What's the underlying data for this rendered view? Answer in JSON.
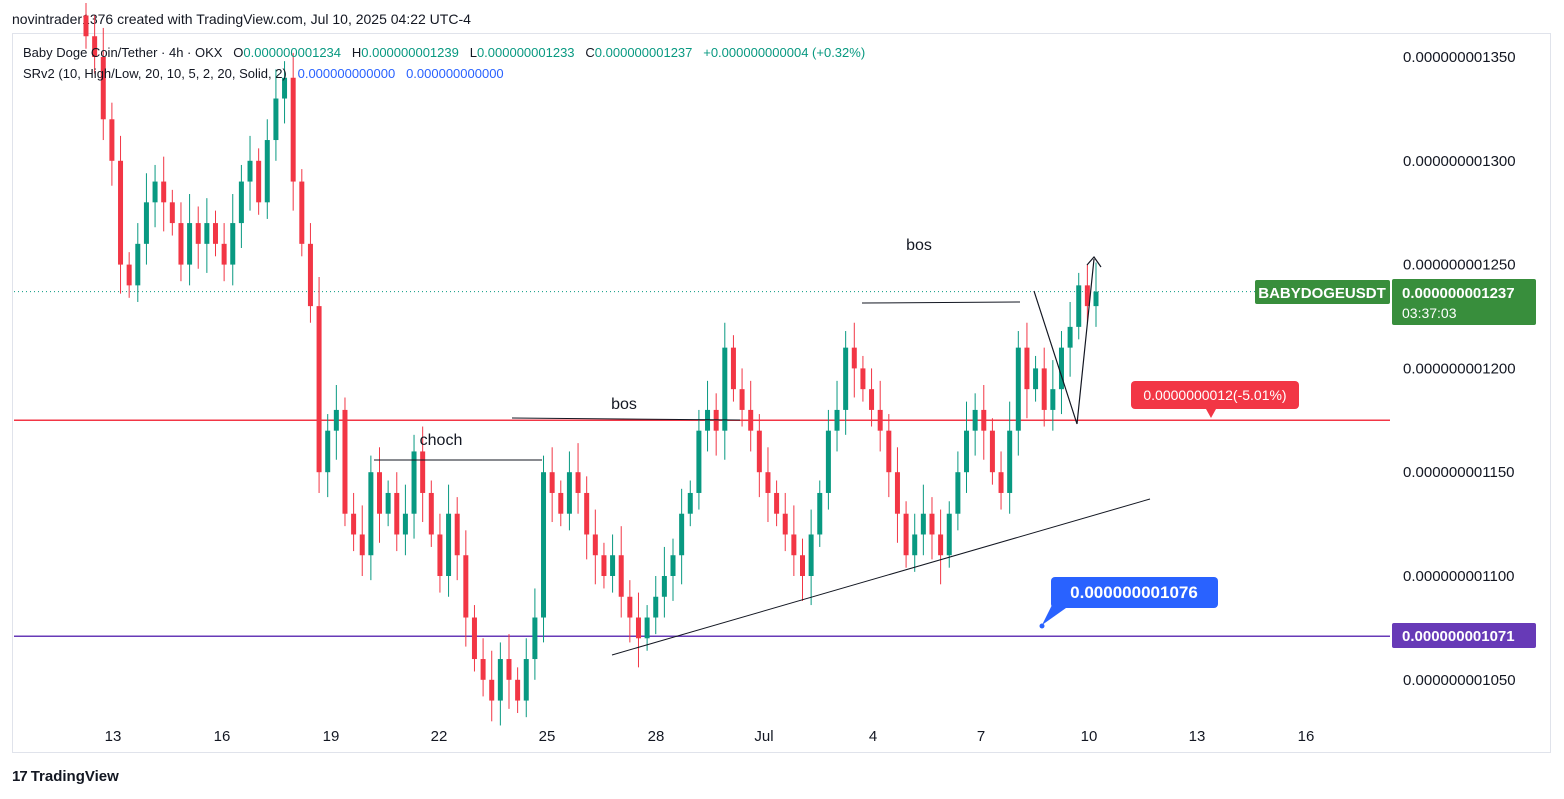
{
  "header": "novintrader1376 created with TradingView.com, Jul 10, 2025 04:22 UTC-4",
  "legend": {
    "symbol": "Baby Doge Coin/Tether · 4h · OKX",
    "o_label": "O",
    "o": "0.000000001234",
    "h_label": "H",
    "h": "0.000000001239",
    "l_label": "L",
    "l": "0.000000001233",
    "c_label": "C",
    "c": "0.000000001237",
    "change": "+0.000000000004 (+0.32%)",
    "indicator": "SRv2 (10, High/Low, 20, 10, 5, 2, 20, Solid, 2)",
    "ind_v1": "0.000000000000",
    "ind_v2": "0.000000000000"
  },
  "footer": {
    "brand": "TradingView",
    "logo_mark": "17"
  },
  "colors": {
    "up": "#089981",
    "down": "#f23645",
    "accent_green": "#388e3c",
    "resistance": "#f23645",
    "support": "#673ab7",
    "callout": "#2962ff"
  },
  "chart_data": {
    "type": "candlestick",
    "timeframe": "4h",
    "symbol_tag": "BABYDOGEUSDT",
    "x_tick_labels": [
      "13",
      "16",
      "19",
      "22",
      "25",
      "28",
      "Jul",
      "4",
      "7",
      "10",
      "13",
      "16"
    ],
    "y_tick_labels": [
      "0.000000001350",
      "0.000000001300",
      "0.000000001250",
      "0.000000001200",
      "0.000000001150",
      "0.000000001100",
      "0.000000001050"
    ],
    "y_ticks": [
      1.35,
      1.3,
      1.25,
      1.2,
      1.15,
      1.1,
      1.05
    ],
    "y_unit": "×1e-9 USDT",
    "last_price_label": "0.000000001237",
    "countdown": "03:37:03",
    "resistance_label": "0.0000000012(-5.01%)",
    "resistance_level": 1.175,
    "support_label": "0.000000001071",
    "support_level": 1.071,
    "callout_label": "0.000000001076",
    "callout_value": 1.076,
    "annotations": [
      "choch",
      "bos",
      "bos"
    ],
    "closes": [
      1.36,
      1.35,
      1.32,
      1.3,
      1.25,
      1.24,
      1.26,
      1.28,
      1.29,
      1.28,
      1.27,
      1.25,
      1.27,
      1.26,
      1.27,
      1.26,
      1.25,
      1.27,
      1.29,
      1.3,
      1.28,
      1.31,
      1.33,
      1.34,
      1.29,
      1.26,
      1.23,
      1.15,
      1.17,
      1.18,
      1.13,
      1.12,
      1.11,
      1.15,
      1.13,
      1.14,
      1.12,
      1.13,
      1.16,
      1.14,
      1.12,
      1.1,
      1.13,
      1.11,
      1.08,
      1.06,
      1.05,
      1.04,
      1.06,
      1.05,
      1.04,
      1.06,
      1.08,
      1.15,
      1.14,
      1.13,
      1.15,
      1.14,
      1.12,
      1.11,
      1.1,
      1.11,
      1.09,
      1.08,
      1.07,
      1.08,
      1.09,
      1.1,
      1.11,
      1.13,
      1.14,
      1.17,
      1.18,
      1.17,
      1.21,
      1.19,
      1.18,
      1.17,
      1.15,
      1.14,
      1.13,
      1.12,
      1.11,
      1.1,
      1.12,
      1.14,
      1.17,
      1.18,
      1.21,
      1.2,
      1.19,
      1.18,
      1.17,
      1.15,
      1.13,
      1.11,
      1.12,
      1.13,
      1.12,
      1.11,
      1.13,
      1.15,
      1.17,
      1.18,
      1.17,
      1.15,
      1.14,
      1.17,
      1.21,
      1.19,
      1.2,
      1.18,
      1.19,
      1.21,
      1.22,
      1.24,
      1.23,
      1.237
    ]
  }
}
